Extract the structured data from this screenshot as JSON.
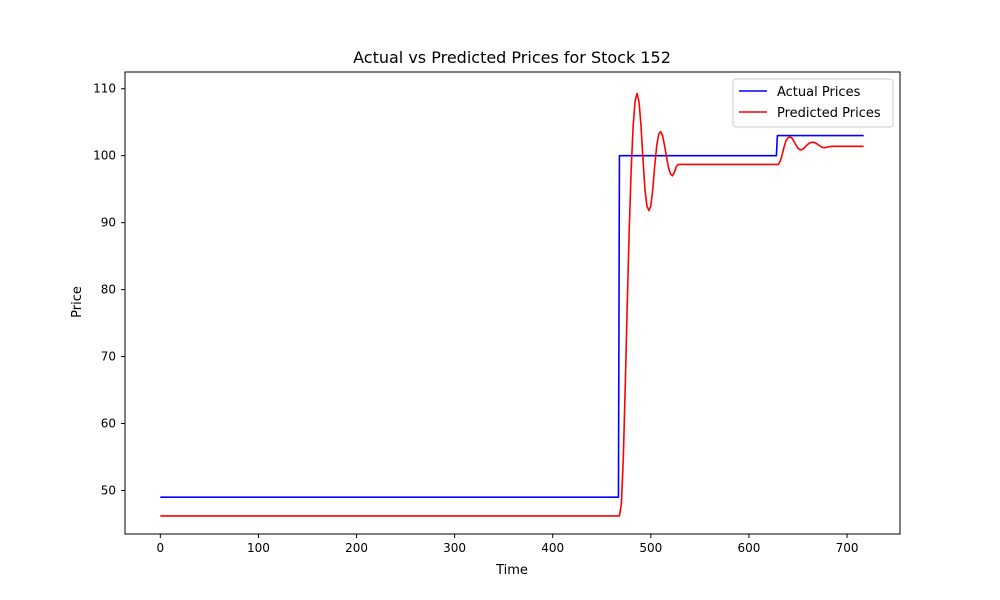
{
  "chart_data": {
    "type": "line",
    "title": "Actual vs Predicted Prices for Stock 152",
    "xlabel": "Time",
    "ylabel": "Price",
    "xlim": [
      -36,
      754
    ],
    "ylim": [
      43.5,
      112.5
    ],
    "x_ticks": [
      0,
      100,
      200,
      300,
      400,
      500,
      600,
      700
    ],
    "y_ticks": [
      50,
      60,
      70,
      80,
      90,
      100,
      110
    ],
    "grid": false,
    "legend_position": "upper right",
    "series": [
      {
        "name": "Actual Prices",
        "color": "#0000ff",
        "points": [
          [
            0,
            49
          ],
          [
            467,
            49
          ],
          [
            468,
            100
          ],
          [
            628,
            100
          ],
          [
            629,
            103
          ],
          [
            717,
            103
          ]
        ]
      },
      {
        "name": "Predicted Prices",
        "color": "#ff0000",
        "points": [
          [
            0,
            46.2
          ],
          [
            468,
            46.2
          ],
          [
            470,
            48
          ],
          [
            472,
            55
          ],
          [
            474,
            66
          ],
          [
            476,
            78
          ],
          [
            478,
            89
          ],
          [
            480,
            98
          ],
          [
            482,
            104.5
          ],
          [
            484,
            108.2
          ],
          [
            486,
            109.3
          ],
          [
            488,
            108
          ],
          [
            490,
            104.5
          ],
          [
            492,
            99.5
          ],
          [
            494,
            95
          ],
          [
            496,
            92.5
          ],
          [
            498,
            91.8
          ],
          [
            500,
            92.5
          ],
          [
            502,
            95
          ],
          [
            504,
            98.5
          ],
          [
            506,
            101.5
          ],
          [
            508,
            103.2
          ],
          [
            510,
            103.6
          ],
          [
            512,
            103
          ],
          [
            514,
            101.5
          ],
          [
            516,
            99.8
          ],
          [
            518,
            98.2
          ],
          [
            520,
            97.3
          ],
          [
            522,
            97
          ],
          [
            524,
            97.5
          ],
          [
            526,
            98.4
          ],
          [
            528,
            98.7
          ],
          [
            630,
            98.7
          ],
          [
            632,
            99.2
          ],
          [
            634,
            100.2
          ],
          [
            636,
            101.4
          ],
          [
            638,
            102.3
          ],
          [
            640,
            102.7
          ],
          [
            642,
            102.8
          ],
          [
            644,
            102.6
          ],
          [
            646,
            102.1
          ],
          [
            648,
            101.6
          ],
          [
            650,
            101.1
          ],
          [
            652,
            100.9
          ],
          [
            654,
            100.9
          ],
          [
            656,
            101.1
          ],
          [
            658,
            101.4
          ],
          [
            660,
            101.7
          ],
          [
            662,
            101.9
          ],
          [
            664,
            102
          ],
          [
            666,
            102
          ],
          [
            668,
            101.9
          ],
          [
            670,
            101.7
          ],
          [
            672,
            101.5
          ],
          [
            674,
            101.3
          ],
          [
            676,
            101.2
          ],
          [
            678,
            101.2
          ],
          [
            680,
            101.3
          ],
          [
            685,
            101.4
          ],
          [
            717,
            101.4
          ]
        ]
      }
    ]
  }
}
